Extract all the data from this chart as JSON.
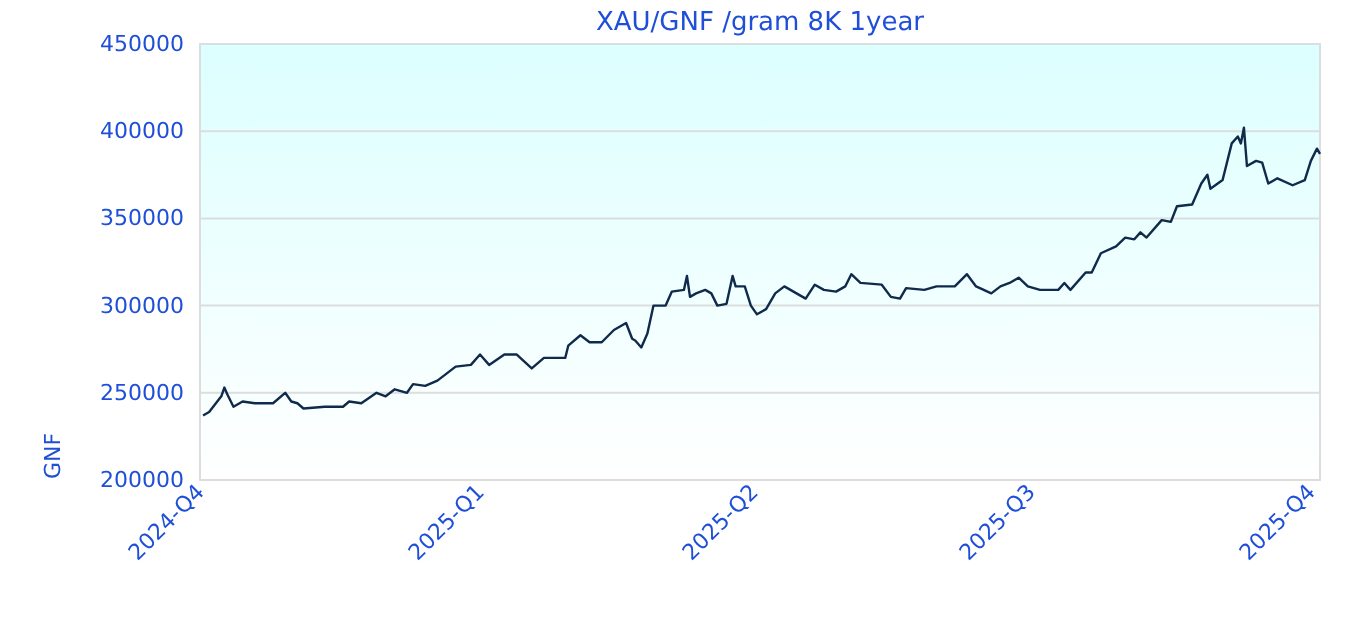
{
  "chart_data": {
    "type": "line",
    "title": "XAU/GNF /gram 8K 1year",
    "ylabel": "GNF",
    "xlim": [
      "2024-10-01",
      "2025-10-04"
    ],
    "xticks": [
      {
        "value": "2024-10-01",
        "label": "2024-Q4"
      },
      {
        "value": "2025-01-01",
        "label": "2025-Q1"
      },
      {
        "value": "2025-04-01",
        "label": "2025-Q2"
      },
      {
        "value": "2025-07-01",
        "label": "2025-Q3"
      },
      {
        "value": "2025-10-01",
        "label": "2025-Q4"
      }
    ],
    "ylim": [
      200000,
      450000
    ],
    "yticks": [
      200000,
      250000,
      300000,
      350000,
      400000,
      450000
    ],
    "grid": "y",
    "marker": "none",
    "line_style": "solid",
    "series": [
      {
        "color": "#0f2a4a",
        "x": [
          "2024-10-02",
          "2024-10-04",
          "2024-10-08",
          "2024-10-09",
          "2024-10-10",
          "2024-10-12",
          "2024-10-15",
          "2024-10-19",
          "2024-10-25",
          "2024-10-29",
          "2024-10-31",
          "2024-11-02",
          "2024-11-04",
          "2024-11-11",
          "2024-11-17",
          "2024-11-19",
          "2024-11-23",
          "2024-11-28",
          "2024-12-01",
          "2024-12-04",
          "2024-12-08",
          "2024-12-10",
          "2024-12-14",
          "2024-12-18",
          "2024-12-21",
          "2024-12-24",
          "2024-12-29",
          "2025-01-01",
          "2025-01-04",
          "2025-01-09",
          "2025-01-13",
          "2025-01-18",
          "2025-01-22",
          "2025-01-29",
          "2025-01-30",
          "2025-02-03",
          "2025-02-06",
          "2025-02-10",
          "2025-02-14",
          "2025-02-18",
          "2025-02-20",
          "2025-02-21",
          "2025-02-23",
          "2025-02-25",
          "2025-02-27",
          "2025-03-03",
          "2025-03-05",
          "2025-03-09",
          "2025-03-10",
          "2025-03-11",
          "2025-03-13",
          "2025-03-16",
          "2025-03-18",
          "2025-03-20",
          "2025-03-23",
          "2025-03-25",
          "2025-03-26",
          "2025-03-29",
          "2025-03-31",
          "2025-04-02",
          "2025-04-05",
          "2025-04-08",
          "2025-04-11",
          "2025-04-14",
          "2025-04-18",
          "2025-04-21",
          "2025-04-24",
          "2025-04-28",
          "2025-05-01",
          "2025-05-03",
          "2025-05-06",
          "2025-05-13",
          "2025-05-16",
          "2025-05-19",
          "2025-05-21",
          "2025-05-27",
          "2025-05-31",
          "2025-06-06",
          "2025-06-10",
          "2025-06-13",
          "2025-06-18",
          "2025-06-21",
          "2025-06-24",
          "2025-06-27",
          "2025-06-30",
          "2025-07-04",
          "2025-07-10",
          "2025-07-12",
          "2025-07-14",
          "2025-07-19",
          "2025-07-21",
          "2025-07-24",
          "2025-07-29",
          "2025-08-01",
          "2025-08-04",
          "2025-08-06",
          "2025-08-08",
          "2025-08-13",
          "2025-08-16",
          "2025-08-18",
          "2025-08-23",
          "2025-08-26",
          "2025-08-28",
          "2025-08-29",
          "2025-09-02",
          "2025-09-05",
          "2025-09-07",
          "2025-09-08",
          "2025-09-09",
          "2025-09-10",
          "2025-09-13",
          "2025-09-15",
          "2025-09-17",
          "2025-09-20",
          "2025-09-25",
          "2025-09-29",
          "2025-10-01",
          "2025-10-03",
          "2025-10-04"
        ],
        "values": [
          237000,
          239000,
          248000,
          253000,
          249000,
          242000,
          245000,
          244000,
          244000,
          250000,
          245000,
          244000,
          241000,
          242000,
          242000,
          245000,
          244000,
          250000,
          248000,
          252000,
          250000,
          255000,
          254000,
          257000,
          261000,
          265000,
          266000,
          272000,
          266000,
          272000,
          272000,
          264000,
          270000,
          270000,
          277000,
          283000,
          279000,
          279000,
          286000,
          290000,
          281000,
          280000,
          276000,
          284000,
          300000,
          300000,
          308000,
          309000,
          317000,
          305000,
          307000,
          309000,
          307000,
          300000,
          301000,
          317000,
          311000,
          311000,
          300000,
          295000,
          298000,
          307000,
          311000,
          308000,
          304000,
          312000,
          309000,
          308000,
          311000,
          318000,
          313000,
          312000,
          305000,
          304000,
          310000,
          309000,
          311000,
          311000,
          318000,
          311000,
          307000,
          311000,
          313000,
          316000,
          311000,
          309000,
          309000,
          313000,
          309000,
          319000,
          319000,
          330000,
          334000,
          339000,
          338000,
          342000,
          339000,
          349000,
          348000,
          357000,
          358000,
          370000,
          375000,
          367000,
          372000,
          393000,
          397000,
          393000,
          402000,
          380000,
          383000,
          382000,
          370000,
          373000,
          369000,
          372000,
          383000,
          390000,
          387000
        ]
      }
    ]
  }
}
